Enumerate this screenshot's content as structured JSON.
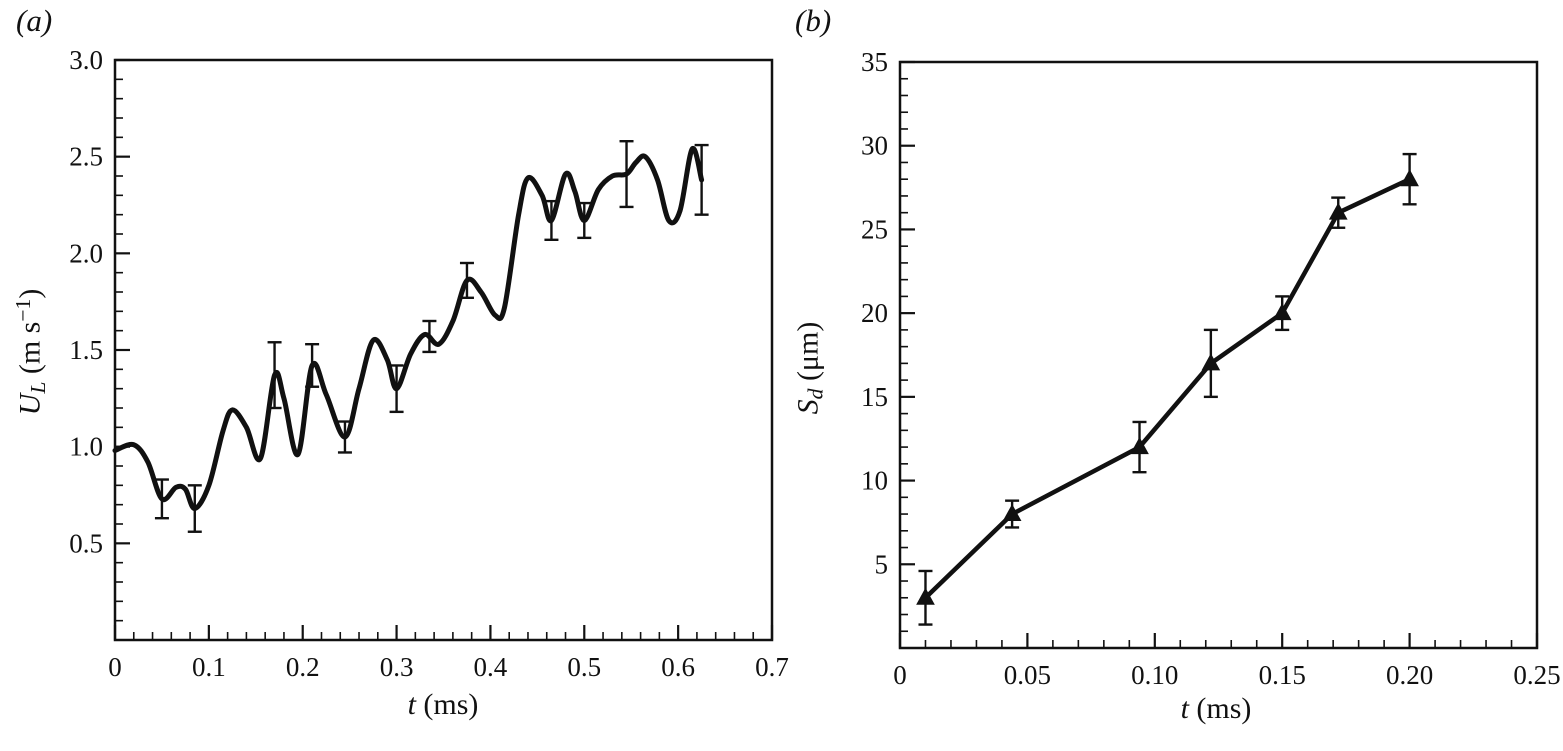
{
  "page": {
    "background": "#ffffff",
    "ink_color": "#111111"
  },
  "panels": [
    {
      "id": "a",
      "letter": "(a)",
      "xlabel": {
        "sym": "t",
        "rest": " (ms)"
      },
      "ylabel": {
        "sym": "U",
        "sub": "L",
        "mid": " (m s",
        "sup": "−1",
        "end": ")"
      }
    },
    {
      "id": "b",
      "letter": "(b)",
      "xlabel": {
        "sym": "t",
        "rest": " (ms)"
      },
      "ylabel": {
        "sym": "S",
        "sub": "d",
        "rest": " (μm)"
      }
    }
  ],
  "chart_data": [
    {
      "id": "a",
      "type": "line",
      "title": "",
      "xlabel": "t (ms)",
      "ylabel": "U_L (m s^-1)",
      "xlim": [
        0,
        0.7
      ],
      "ylim": [
        0,
        3.0
      ],
      "xticks": [
        0,
        0.1,
        0.2,
        0.3,
        0.4,
        0.5,
        0.6,
        0.7
      ],
      "xtick_labels": [
        "0",
        "0.1",
        "0.2",
        "0.3",
        "0.4",
        "0.5",
        "0.6",
        "0.7"
      ],
      "yticks": [
        0.5,
        1.0,
        1.5,
        2.0,
        2.5,
        3.0
      ],
      "ytick_labels": [
        "0.5",
        "1.0",
        "1.5",
        "2.0",
        "2.5",
        "3.0"
      ],
      "x_minor_step": 0.02,
      "y_minor_step": 0.1,
      "grid": false,
      "legend": "none",
      "color": "#111111",
      "line_width": 5,
      "smooth": true,
      "marker": "none",
      "series": [
        {
          "name": "U_L",
          "x": [
            0,
            0.02,
            0.035,
            0.05,
            0.065,
            0.075,
            0.085,
            0.1,
            0.115,
            0.125,
            0.14,
            0.155,
            0.17,
            0.18,
            0.195,
            0.21,
            0.225,
            0.245,
            0.26,
            0.275,
            0.29,
            0.3,
            0.315,
            0.33,
            0.345,
            0.36,
            0.375,
            0.39,
            0.405,
            0.415,
            0.43,
            0.44,
            0.455,
            0.465,
            0.48,
            0.49,
            0.5,
            0.515,
            0.53,
            0.545,
            0.555,
            0.565,
            0.578,
            0.59,
            0.602,
            0.615,
            0.625
          ],
          "y": [
            0.98,
            1.01,
            0.92,
            0.73,
            0.79,
            0.78,
            0.68,
            0.8,
            1.08,
            1.19,
            1.1,
            0.94,
            1.37,
            1.25,
            0.96,
            1.42,
            1.27,
            1.05,
            1.3,
            1.55,
            1.45,
            1.3,
            1.48,
            1.58,
            1.53,
            1.65,
            1.86,
            1.8,
            1.68,
            1.72,
            2.2,
            2.39,
            2.3,
            2.17,
            2.41,
            2.32,
            2.17,
            2.33,
            2.4,
            2.41,
            2.47,
            2.5,
            2.38,
            2.17,
            2.22,
            2.54,
            2.38
          ]
        }
      ],
      "error_bars": [
        {
          "x": 0.05,
          "y": 0.73,
          "err": 0.1
        },
        {
          "x": 0.085,
          "y": 0.68,
          "err": 0.12
        },
        {
          "x": 0.17,
          "y": 1.37,
          "err": 0.17
        },
        {
          "x": 0.21,
          "y": 1.42,
          "err": 0.11
        },
        {
          "x": 0.245,
          "y": 1.05,
          "err": 0.08
        },
        {
          "x": 0.3,
          "y": 1.3,
          "err": 0.12
        },
        {
          "x": 0.335,
          "y": 1.57,
          "err": 0.08
        },
        {
          "x": 0.375,
          "y": 1.86,
          "err": 0.09
        },
        {
          "x": 0.465,
          "y": 2.17,
          "err": 0.1
        },
        {
          "x": 0.5,
          "y": 2.17,
          "err": 0.09
        },
        {
          "x": 0.545,
          "y": 2.41,
          "err": 0.17
        },
        {
          "x": 0.625,
          "y": 2.38,
          "err": 0.18
        }
      ]
    },
    {
      "id": "b",
      "type": "line",
      "title": "",
      "xlabel": "t (ms)",
      "ylabel": "S_d (μm)",
      "xlim": [
        0,
        0.25
      ],
      "ylim": [
        0,
        35
      ],
      "xticks": [
        0,
        0.05,
        0.1,
        0.15,
        0.2,
        0.25
      ],
      "xtick_labels": [
        "0",
        "0.05",
        "0.10",
        "0.15",
        "0.20",
        "0.25"
      ],
      "yticks": [
        5,
        10,
        15,
        20,
        25,
        30,
        35
      ],
      "ytick_labels": [
        "5",
        "10",
        "15",
        "20",
        "25",
        "30",
        "35"
      ],
      "x_minor_step": 0.01,
      "y_minor_step": 1,
      "grid": false,
      "legend": "none",
      "color": "#111111",
      "line_width": 4.5,
      "smooth": false,
      "marker": "triangle",
      "series": [
        {
          "name": "S_d",
          "x": [
            0.01,
            0.044,
            0.094,
            0.122,
            0.15,
            0.172,
            0.2
          ],
          "y": [
            3,
            8,
            12,
            17,
            20,
            26,
            28
          ]
        }
      ],
      "error_bars": [
        {
          "x": 0.01,
          "y": 3,
          "err": 1.6
        },
        {
          "x": 0.044,
          "y": 8,
          "err": 0.8
        },
        {
          "x": 0.094,
          "y": 12,
          "err": 1.5
        },
        {
          "x": 0.122,
          "y": 17,
          "err": 2.0
        },
        {
          "x": 0.15,
          "y": 20,
          "err": 1.0
        },
        {
          "x": 0.172,
          "y": 26,
          "err": 0.9
        },
        {
          "x": 0.2,
          "y": 28,
          "err": 1.5
        }
      ]
    }
  ]
}
